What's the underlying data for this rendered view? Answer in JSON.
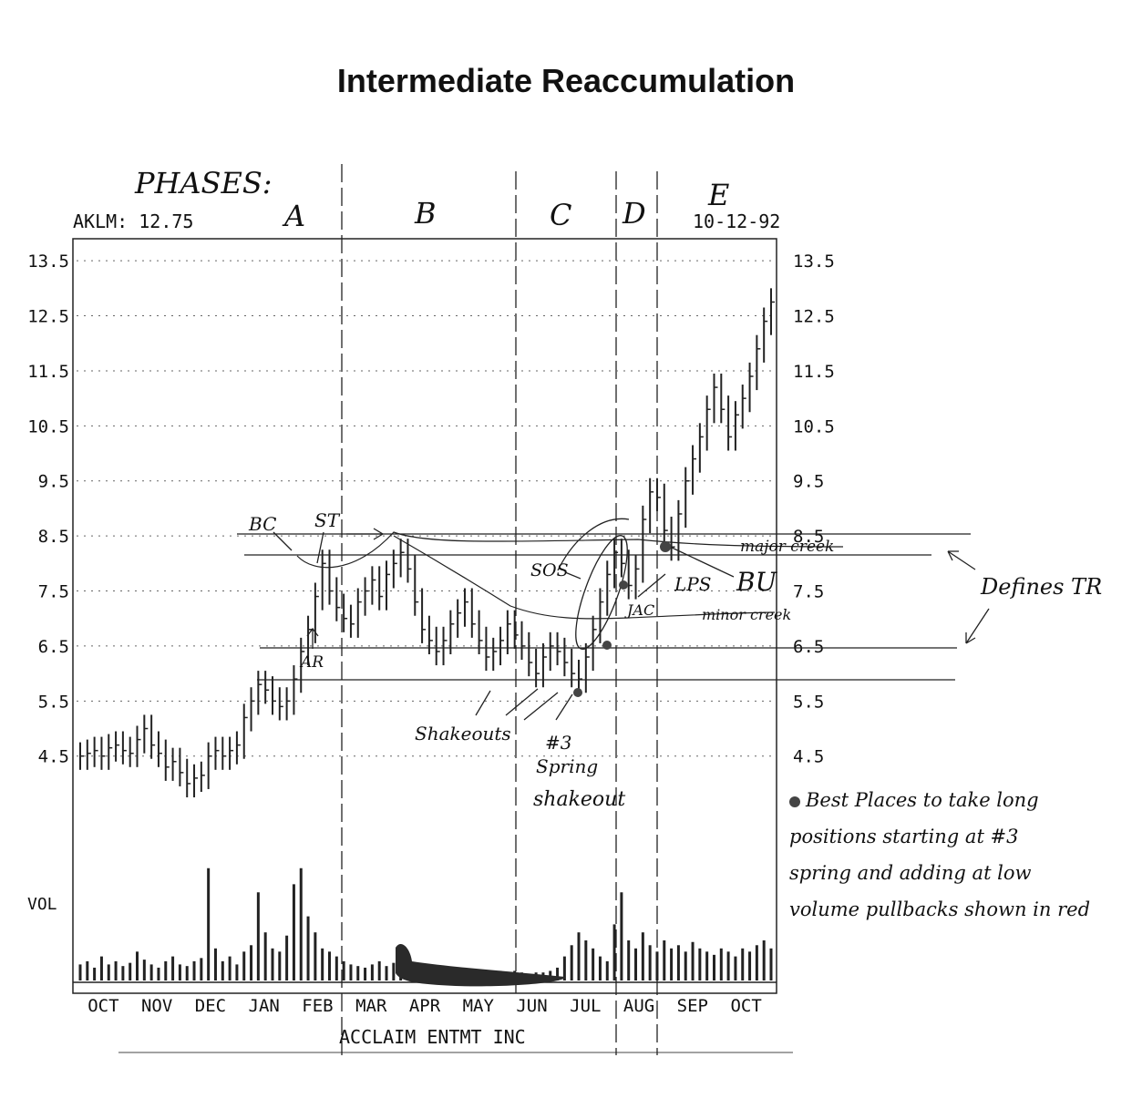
{
  "title": "Intermediate Reaccumulation",
  "chart_data": {
    "type": "bar",
    "ticker_label": "AKLM: 12.75",
    "date_label": "10-12-92",
    "company": "ACCLAIM ENTMT INC",
    "volume_label": "VOL",
    "ylim": [
      3.8,
      13.9
    ],
    "y_ticks": [
      13.5,
      12.5,
      11.5,
      10.5,
      9.5,
      8.5,
      7.5,
      6.5,
      5.5,
      4.5
    ],
    "y_tick_labels": [
      "13.5",
      "12.5",
      "11.5",
      "10.5",
      "9.5",
      "8.5",
      "7.5",
      "6.5",
      "5.5",
      "4.5"
    ],
    "months": [
      "OCT",
      "NOV",
      "DEC",
      "JAN",
      "FEB",
      "MAR",
      "APR",
      "MAY",
      "JUN",
      "JUL",
      "AUG",
      "SEP",
      "OCT"
    ],
    "grid": "dotted",
    "series": [
      {
        "values": [
          4.5,
          4.55,
          4.6,
          4.5,
          4.65,
          4.7,
          4.6,
          4.55,
          4.8,
          5.0,
          4.7,
          4.55,
          4.3,
          4.4,
          4.2,
          4.0,
          4.1,
          4.15,
          4.5,
          4.6,
          4.5,
          4.6,
          4.7,
          5.2,
          5.5,
          5.8,
          5.7,
          5.5,
          5.4,
          5.5,
          5.9,
          6.4,
          6.8,
          7.4,
          8.0,
          7.5,
          7.2,
          7.0,
          6.9,
          7.3,
          7.5,
          7.7,
          7.4,
          7.8,
          8.0,
          8.2,
          7.9,
          7.3,
          6.8,
          6.6,
          6.4,
          6.6,
          6.9,
          7.1,
          7.3,
          6.9,
          6.6,
          6.3,
          6.4,
          6.6,
          6.9,
          6.7,
          6.5,
          6.2,
          6.0,
          6.3,
          6.5,
          6.4,
          6.2,
          6.0,
          5.9,
          6.3,
          6.8,
          7.3,
          7.8,
          8.2,
          8.0,
          7.6,
          7.9,
          8.8,
          9.3,
          9.2,
          8.6,
          8.3,
          8.9,
          9.5,
          9.9,
          10.3,
          10.8,
          11.2,
          10.8,
          10.3,
          10.7,
          11.0,
          11.4,
          11.9,
          12.4,
          12.75
        ]
      }
    ],
    "volume": [
      0.1,
      0.12,
      0.08,
      0.15,
      0.1,
      0.12,
      0.09,
      0.11,
      0.18,
      0.13,
      0.1,
      0.08,
      0.12,
      0.15,
      0.1,
      0.09,
      0.12,
      0.14,
      0.7,
      0.2,
      0.12,
      0.15,
      0.1,
      0.18,
      0.22,
      0.55,
      0.3,
      0.2,
      0.18,
      0.28,
      0.6,
      0.7,
      0.4,
      0.3,
      0.2,
      0.18,
      0.15,
      0.12,
      0.1,
      0.09,
      0.08,
      0.1,
      0.12,
      0.09,
      0.11,
      0.1,
      0.08,
      0.07,
      0.06,
      0.06,
      0.05,
      0.06,
      0.07,
      0.06,
      0.05,
      0.05,
      0.06,
      0.05,
      0.05,
      0.06,
      0.05,
      0.06,
      0.05,
      0.04,
      0.05,
      0.05,
      0.06,
      0.08,
      0.15,
      0.22,
      0.3,
      0.25,
      0.2,
      0.15,
      0.12,
      0.35,
      0.55,
      0.25,
      0.2,
      0.3,
      0.22,
      0.18,
      0.25,
      0.2,
      0.22,
      0.18,
      0.24,
      0.2,
      0.18,
      0.16,
      0.2,
      0.18,
      0.15,
      0.2,
      0.18,
      0.22,
      0.25,
      0.2
    ]
  },
  "phases": {
    "heading": "PHASES:",
    "labels": [
      "A",
      "B",
      "C",
      "D",
      "E"
    ]
  },
  "annotations": {
    "bc": "BC",
    "st": "ST",
    "ar": "AR",
    "sos": "SOS",
    "lps": "LPS",
    "bu": "BU",
    "jac": "JAC",
    "major_creek": "major creek",
    "minor_creek": "minor creek",
    "defines_tr": "Defines TR",
    "shakeouts": "Shakeouts",
    "spring_num": "#3",
    "spring": "Spring",
    "shakeout": "shakeout"
  },
  "note": {
    "lines": [
      "Best Places to take long",
      "positions starting at #3",
      "spring and adding at low",
      "volume pullbacks shown in red"
    ]
  }
}
